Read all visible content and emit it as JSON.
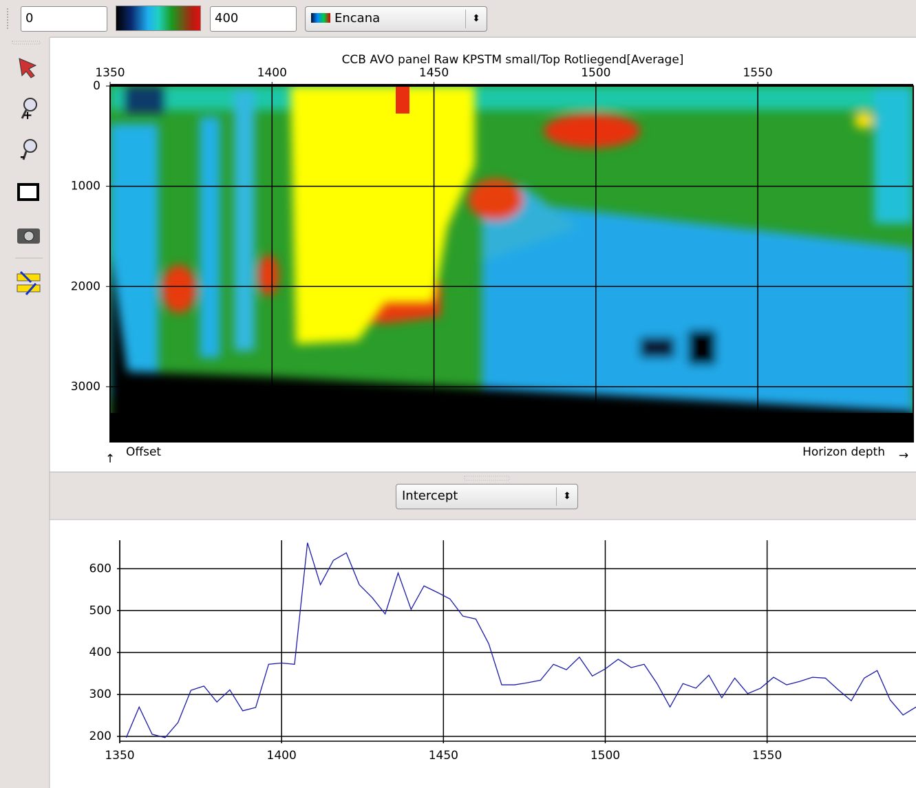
{
  "toolbar": {
    "min_value": "0",
    "max_value": "400",
    "color_table": "Encana"
  },
  "attribute_selector": "Intercept",
  "chart_data": [
    {
      "type": "heatmap",
      "title": "CCB AVO panel Raw KPSTM small/Top Rotliegend[Average]",
      "x_label": "Horizon depth",
      "y_label": "Offset",
      "xlim": [
        1350,
        1598
      ],
      "ylim": [
        0,
        3550
      ],
      "xticks": [
        1350,
        1400,
        1450,
        1500,
        1550
      ],
      "yticks": [
        0,
        1000,
        2000,
        3000
      ],
      "grid": true
    },
    {
      "type": "line",
      "x": [
        1352,
        1356,
        1360,
        1364,
        1368,
        1372,
        1376,
        1380,
        1384,
        1388,
        1392,
        1396,
        1400,
        1404,
        1408,
        1412,
        1416,
        1420,
        1424,
        1428,
        1432,
        1436,
        1440,
        1444,
        1448,
        1452,
        1456,
        1460,
        1464,
        1468,
        1472,
        1476,
        1480,
        1484,
        1488,
        1492,
        1496,
        1500,
        1504,
        1508,
        1512,
        1516,
        1520,
        1524,
        1528,
        1532,
        1536,
        1540,
        1544,
        1548,
        1552,
        1556,
        1560,
        1564,
        1568,
        1572,
        1576,
        1580,
        1584,
        1588,
        1592,
        1596
      ],
      "series": [
        {
          "color": "#1a1aa8",
          "values": [
            197,
            270,
            205,
            197,
            233,
            310,
            320,
            282,
            311,
            261,
            269,
            372,
            375,
            372,
            662,
            562,
            620,
            638,
            562,
            531,
            492,
            590,
            503,
            559,
            544,
            528,
            487,
            480,
            421,
            323,
            323,
            328,
            334,
            372,
            359,
            389,
            344,
            361,
            384,
            364,
            372,
            326,
            270,
            326,
            315,
            346,
            292,
            339,
            302,
            315,
            341,
            323,
            331,
            341,
            339,
            311,
            285,
            339,
            357,
            287,
            251,
            270
          ]
        }
      ],
      "xlim": [
        1350,
        1596
      ],
      "ylim": [
        195,
        668
      ],
      "xticks": [
        1350,
        1400,
        1450,
        1500,
        1550
      ],
      "yticks": [
        200,
        300,
        400,
        500,
        600
      ],
      "grid": true
    }
  ]
}
